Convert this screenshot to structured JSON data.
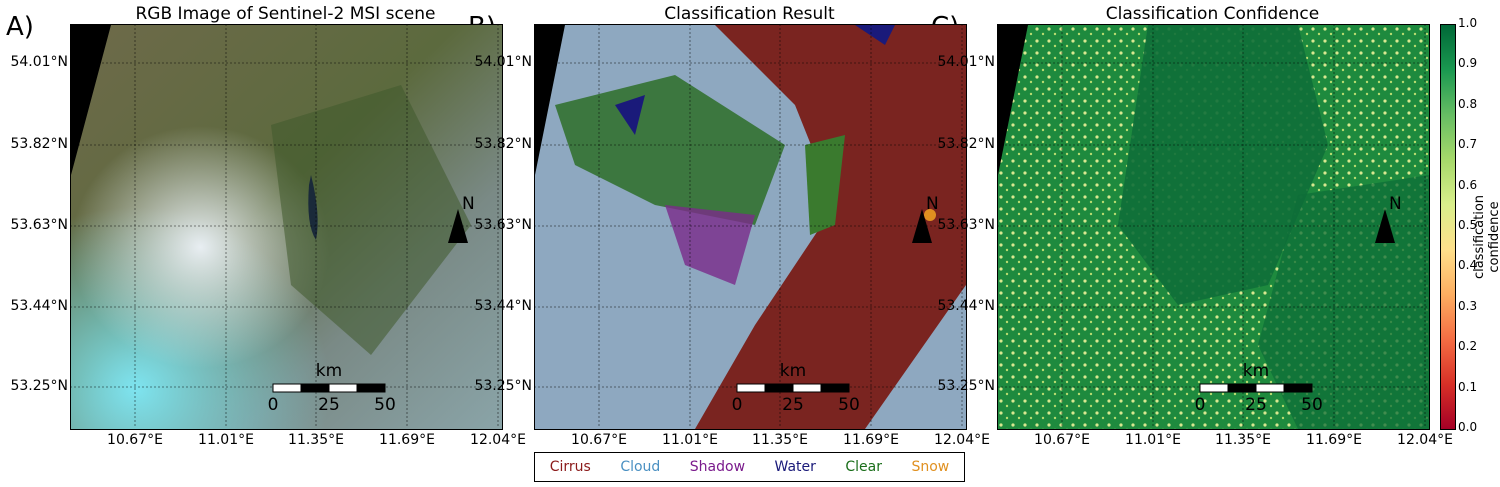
{
  "panels": [
    {
      "letter": "A)",
      "title": "RGB Image of Sentinel-2 MSI scene"
    },
    {
      "letter": "B)",
      "title": "Classification Result"
    },
    {
      "letter": "C)",
      "title": "Classification Confidence"
    }
  ],
  "latitudes": [
    "54.01°N",
    "53.82°N",
    "53.63°N",
    "53.44°N",
    "53.25°N"
  ],
  "longitudes": [
    "10.67°E",
    "11.01°E",
    "11.35°E",
    "11.69°E",
    "12.04°E"
  ],
  "scalebar": {
    "unit": "km",
    "ticks": [
      "0",
      "25",
      "50"
    ]
  },
  "north_label": "N",
  "legend": [
    {
      "label": "Cirrus",
      "color": "#8b1a1a"
    },
    {
      "label": "Cloud",
      "color": "#4a90c2"
    },
    {
      "label": "Shadow",
      "color": "#7a1a8c"
    },
    {
      "label": "Water",
      "color": "#1a1a7a"
    },
    {
      "label": "Clear",
      "color": "#1a6e1a"
    },
    {
      "label": "Snow",
      "color": "#e09020"
    }
  ],
  "colorbar": {
    "label": "classification confidence",
    "ticks": [
      "1.0",
      "0.9",
      "0.8",
      "0.7",
      "0.6",
      "0.5",
      "0.4",
      "0.3",
      "0.2",
      "0.1",
      "0.0"
    ]
  }
}
